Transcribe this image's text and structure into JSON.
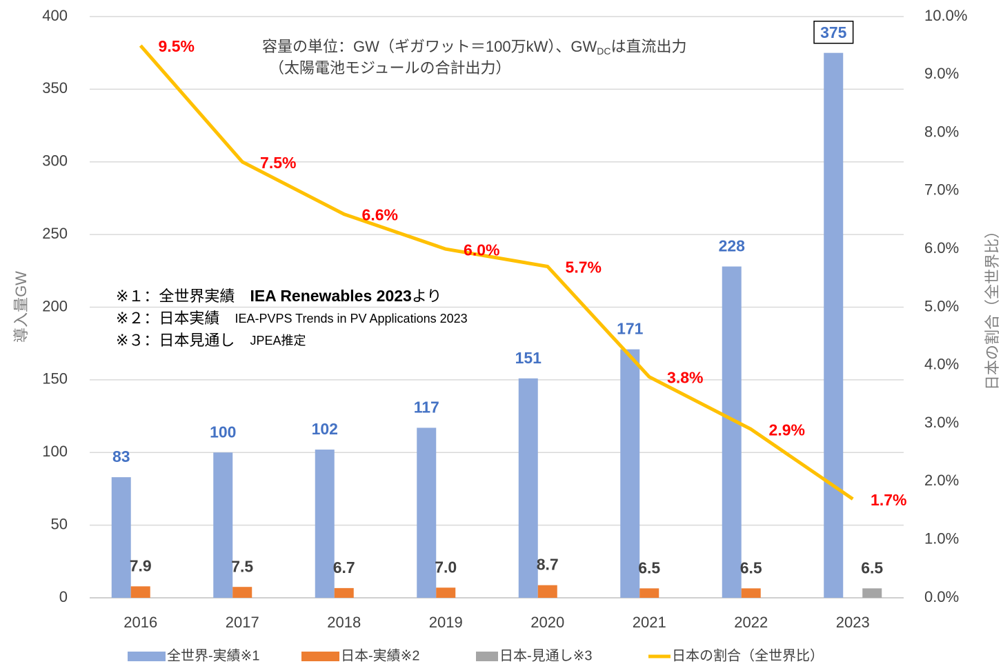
{
  "chart_data": {
    "type": "bar",
    "categories": [
      "2016",
      "2017",
      "2018",
      "2019",
      "2020",
      "2021",
      "2022",
      "2023"
    ],
    "ylim": [
      0,
      400
    ],
    "yticks": [
      0,
      50,
      100,
      150,
      200,
      250,
      300,
      350,
      400
    ],
    "y2lim": [
      0,
      10
    ],
    "y2ticks": [
      {
        "value": 0,
        "label": "0.0%"
      },
      {
        "value": 1,
        "label": "1.0%"
      },
      {
        "value": 2,
        "label": "2.0%"
      },
      {
        "value": 3,
        "label": "3.0%"
      },
      {
        "value": 4,
        "label": "4.0%"
      },
      {
        "value": 5,
        "label": "5.0%"
      },
      {
        "value": 6,
        "label": "6.0%"
      },
      {
        "value": 7,
        "label": "7.0%"
      },
      {
        "value": 8,
        "label": "8.0%"
      },
      {
        "value": 9,
        "label": "9.0%"
      },
      {
        "value": 10,
        "label": "10.0%"
      }
    ],
    "ylabel": "導入量GW",
    "y2label": "日本の割合（全世界比）",
    "grid": true,
    "legend": "bottom",
    "note": [
      [
        "容量の単位：GW（ギガワット＝100万kW）、GW",
        "DC",
        "は直流出力"
      ],
      [
        "（太陽電池モジュールの合計出力）"
      ]
    ],
    "footnotes": [
      [
        "※１：全世界実績　",
        "IEA Renewables 2023",
        "より"
      ],
      [
        "※２：日本実績　",
        "IEA-PVPS Trends in PV Applications 2023"
      ],
      [
        "※３：日本見通し　",
        "JPEA推定"
      ]
    ],
    "series": [
      {
        "name": "全世界-実績※1",
        "color": "#8faadc",
        "label_color": "#4472c4",
        "values": [
          83,
          100,
          102,
          117,
          151,
          171,
          228,
          375
        ],
        "boxed": [
          7
        ]
      },
      {
        "name": "日本‐実績※2",
        "color": "#ed7d31",
        "label_color": "#404040",
        "values": [
          7.9,
          7.5,
          6.7,
          7.0,
          8.7,
          6.5,
          6.5,
          null
        ],
        "value_labels": [
          "7.9",
          "7.5",
          "6.7",
          "7.0",
          "8.7",
          "6.5",
          "6.5",
          null
        ]
      },
      {
        "name": "日本‐見通し※3",
        "color": "#a5a5a5",
        "label_color": "#404040",
        "values": [
          null,
          null,
          null,
          null,
          null,
          null,
          null,
          6.5
        ]
      },
      {
        "name": "日本の割合（全世界比）",
        "type": "line",
        "axis": "y2",
        "color": "#ffc000",
        "label_color": "#ff0000",
        "values": [
          9.5,
          7.5,
          6.6,
          6.0,
          5.7,
          3.8,
          2.9,
          1.7
        ],
        "value_labels": [
          "9.5%",
          "7.5%",
          "6.6%",
          "6.0%",
          "5.7%",
          "3.8%",
          "2.9%",
          "1.7%"
        ]
      }
    ]
  }
}
